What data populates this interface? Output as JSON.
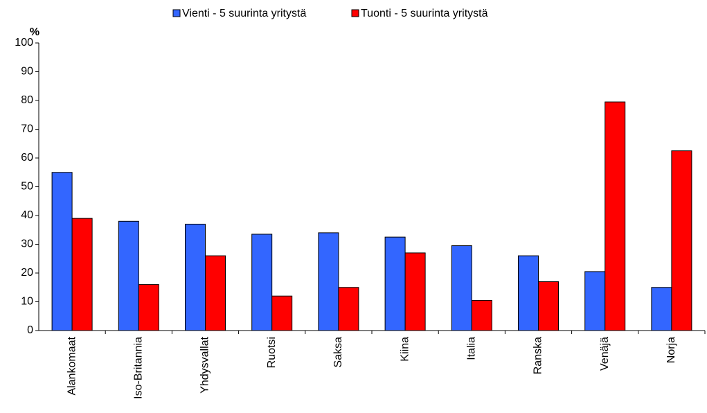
{
  "chart_data": {
    "type": "bar",
    "y_label": "%",
    "categories": [
      "Alankomaat",
      "Iso-Britannia",
      "Yhdysvallat",
      "Ruotsi",
      "Saksa",
      "Kiina",
      "Italia",
      "Ranska",
      "Venäjä",
      "Norja"
    ],
    "series": [
      {
        "name": "Vienti - 5 suurinta yritystä",
        "color": "#3366ff",
        "values": [
          55,
          38,
          37,
          33.5,
          34,
          32.5,
          29.5,
          26,
          20.5,
          15
        ]
      },
      {
        "name": "Tuonti - 5 suurinta yritystä",
        "color": "#ff0000",
        "values": [
          39,
          16,
          26,
          12,
          15,
          27,
          10.5,
          17,
          79.5,
          62.5
        ]
      }
    ],
    "ylim": [
      0,
      100
    ],
    "yticks": [
      0,
      10,
      20,
      30,
      40,
      50,
      60,
      70,
      80,
      90,
      100
    ],
    "legend": "top"
  }
}
